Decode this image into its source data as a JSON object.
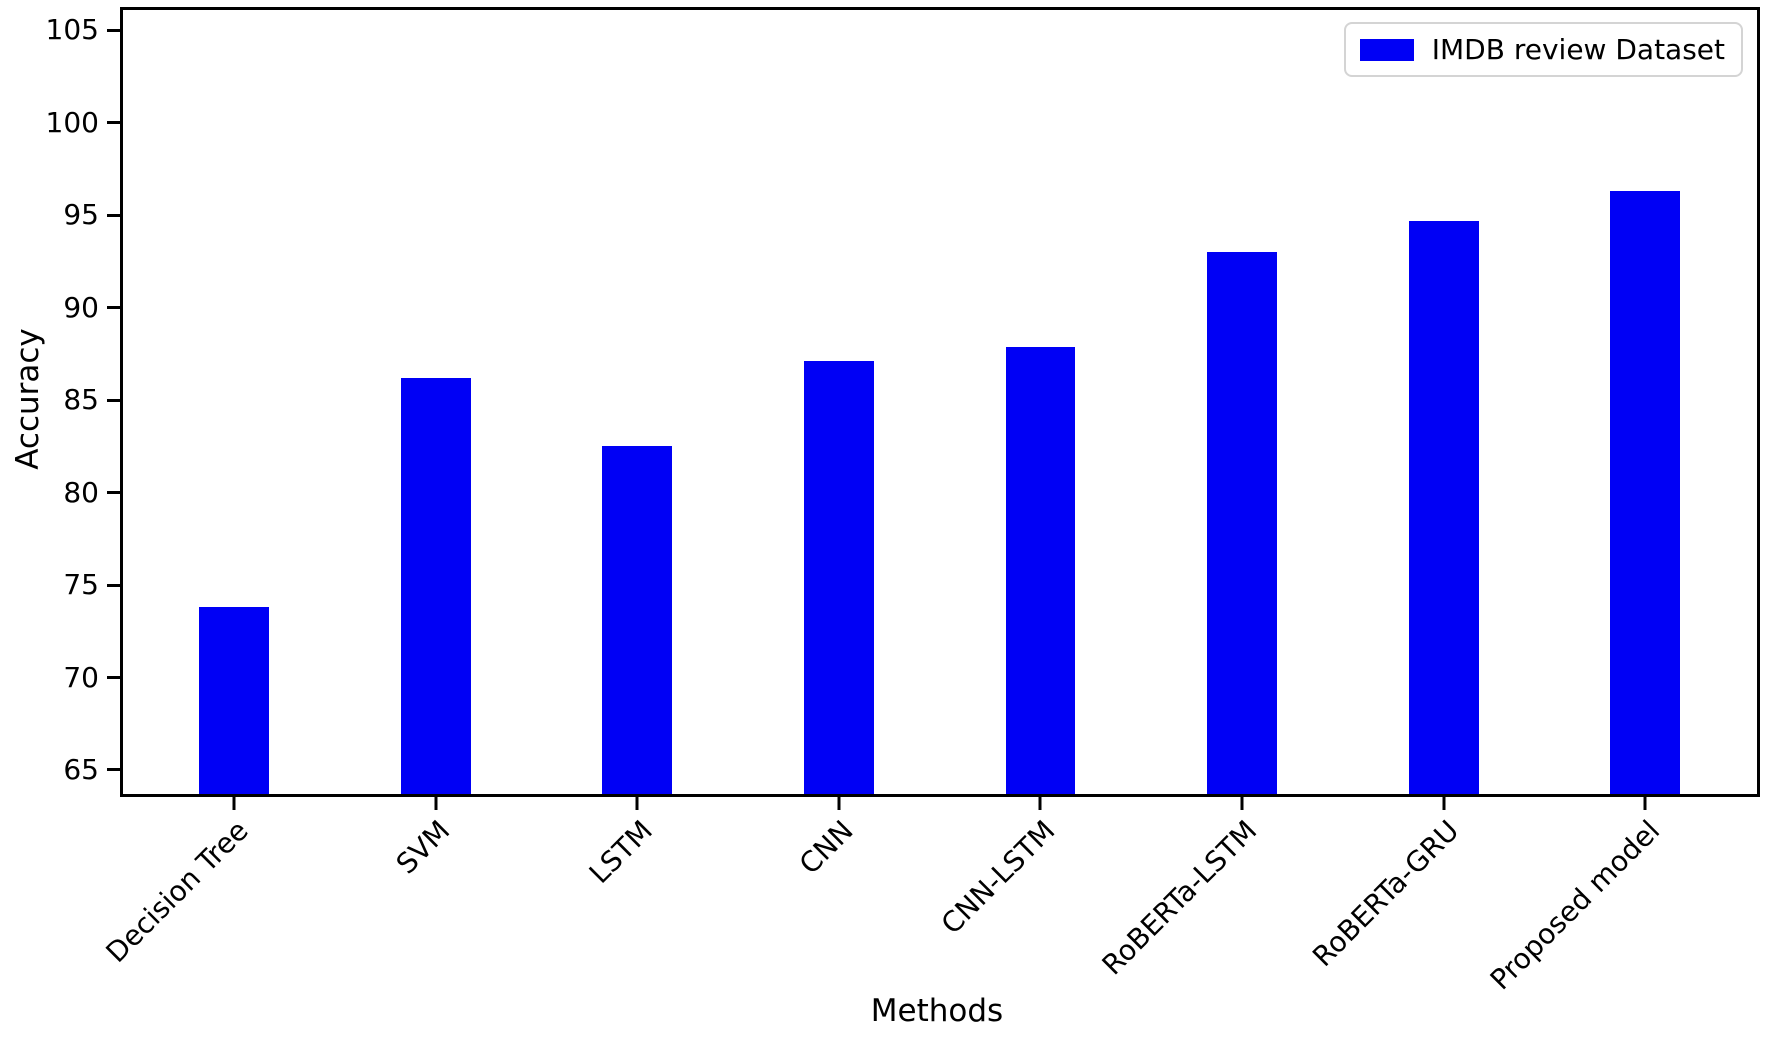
{
  "figure": {
    "background_color": "#ffffff",
    "axis_color": "#000000",
    "legend_border_color": "#d4d4d4"
  },
  "chart_data": {
    "type": "bar",
    "title": "",
    "xlabel": "Methods",
    "ylabel": "Accuracy",
    "categories": [
      "Decision Tree",
      "SVM",
      "LSTM",
      "CNN",
      "CNN-LSTM",
      "RoBERTa-LSTM",
      "RoBERTa-GRU",
      "Proposed model"
    ],
    "values": [
      73.8,
      86.2,
      82.5,
      87.1,
      87.9,
      93.0,
      94.7,
      96.3
    ],
    "series_name": "IMDB review Dataset",
    "bar_color": "#0000f5",
    "yticks": [
      65,
      70,
      75,
      80,
      85,
      90,
      95,
      100,
      105
    ],
    "ylim": [
      63.7,
      106.1
    ],
    "grid": false,
    "legend": {
      "label": "IMDB review Dataset",
      "position": "upper right",
      "swatch_color": "#0000f5"
    },
    "xtick_rotation_deg": 45
  }
}
